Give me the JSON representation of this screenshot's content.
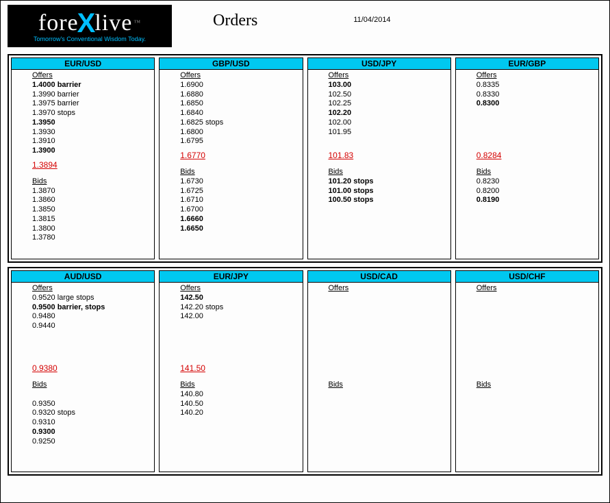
{
  "logo": {
    "pre": "fore",
    "x": "X",
    "post": "live",
    "tm": "™",
    "tagline": "Tomorrow's Conventional Wisdom Today."
  },
  "title": "Orders",
  "date": "11/04/2014",
  "colors": {
    "header_bg": "#00c8f0",
    "current_price": "#d40000",
    "border": "#000000"
  },
  "rows": [
    [
      {
        "pair": "EUR/USD",
        "offers": [
          {
            "text": "1.4000 barrier",
            "bold": true
          },
          {
            "text": "1.3990 barrier"
          },
          {
            "text": "1.3975 barrier"
          },
          {
            "text": "1.3970 stops"
          },
          {
            "text": "1.3950",
            "bold": true
          },
          {
            "text": "1.3930"
          },
          {
            "text": "1.3910"
          },
          {
            "text": "1.3900",
            "bold": true
          }
        ],
        "current": "1.3894",
        "bids": [
          {
            "text": "1.3870"
          },
          {
            "text": "1.3860"
          },
          {
            "text": "1.3850"
          },
          {
            "text": "1.3815"
          },
          {
            "text": "1.3800"
          },
          {
            "text": "1.3780"
          }
        ]
      },
      {
        "pair": "GBP/USD",
        "offers": [
          {
            "text": "1.6900"
          },
          {
            "text": "1.6880"
          },
          {
            "text": "1.6850"
          },
          {
            "text": "1.6840"
          },
          {
            "text": "1.6825 stops"
          },
          {
            "text": "1.6800"
          },
          {
            "text": "1.6795"
          }
        ],
        "current": "1.6770",
        "bids": [
          {
            "text": "1.6730"
          },
          {
            "text": "1.6725"
          },
          {
            "text": "1.6710"
          },
          {
            "text": "1.6700"
          },
          {
            "text": "1.6660",
            "bold": true
          },
          {
            "text": "1.6650",
            "bold": true
          }
        ]
      },
      {
        "pair": "USD/JPY",
        "offers": [
          {
            "text": "103.00",
            "bold": true
          },
          {
            "text": "102.50"
          },
          {
            "text": "102.25"
          },
          {
            "text": "102.20",
            "bold": true
          },
          {
            "text": "102.00"
          },
          {
            "text": "101.95"
          }
        ],
        "current": "101.83",
        "bids": [
          {
            "text": "101.20 stops",
            "bold": true
          },
          {
            "text": "101.00 stops",
            "bold": true
          },
          {
            "text": "100.50 stops",
            "bold": true
          }
        ]
      },
      {
        "pair": "EUR/GBP",
        "offers": [
          {
            "text": "0.8335"
          },
          {
            "text": "0.8330"
          },
          {
            "text": "0.8300",
            "bold": true
          }
        ],
        "current": "0.8284",
        "bids": [
          {
            "text": "0.8230"
          },
          {
            "text": "0.8200"
          },
          {
            "text": "0.8190",
            "bold": true
          }
        ]
      }
    ],
    [
      {
        "pair": "AUD/USD",
        "offers": [
          {
            "text": "0.9520 large stops"
          },
          {
            "text": "0.9500 barrier, stops",
            "bold": true
          },
          {
            "text": "0.9480"
          },
          {
            "text": "0.9440"
          }
        ],
        "current": "0.9380",
        "bids": [
          {
            "text": " "
          },
          {
            "text": "0.9350"
          },
          {
            "text": "0.9320 stops"
          },
          {
            "text": "0.9310"
          },
          {
            "text": "0.9300",
            "bold": true
          },
          {
            "text": "0.9250"
          }
        ]
      },
      {
        "pair": "EUR/JPY",
        "offers": [
          {
            "text": "142.50",
            "bold": true
          },
          {
            "text": "142.20 stops"
          },
          {
            "text": "142.00"
          }
        ],
        "current": "141.50",
        "bids": [
          {
            "text": "140.80"
          },
          {
            "text": "140.50"
          },
          {
            "text": "140.20"
          }
        ]
      },
      {
        "pair": "USD/CAD",
        "offers": [],
        "current": "",
        "bids": []
      },
      {
        "pair": "USD/CHF",
        "offers": [],
        "current": "",
        "bids": []
      }
    ]
  ],
  "labels": {
    "offers": "Offers",
    "bids": "Bids"
  }
}
